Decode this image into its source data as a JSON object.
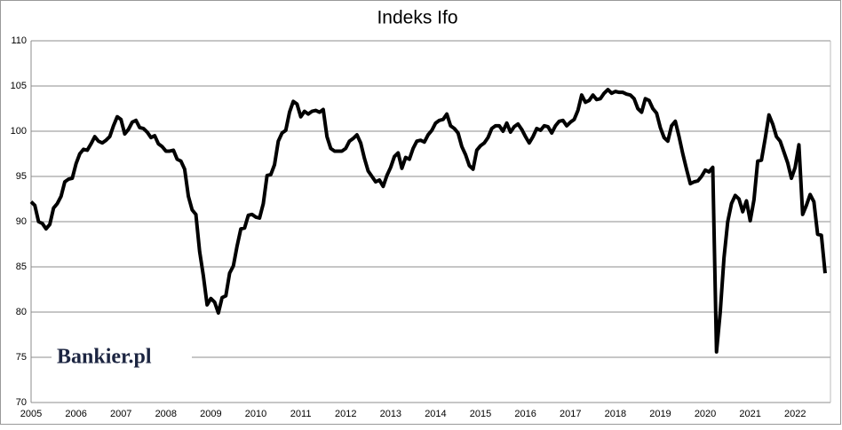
{
  "chart_data": {
    "type": "line",
    "title": "Indeks Ifo",
    "watermark": "Bankier.pl",
    "categories": [
      "2005",
      null,
      null,
      null,
      null,
      null,
      null,
      null,
      null,
      null,
      null,
      null,
      "2006",
      null,
      null,
      null,
      null,
      null,
      null,
      null,
      null,
      null,
      null,
      null,
      "2007",
      null,
      null,
      null,
      null,
      null,
      null,
      null,
      null,
      null,
      null,
      null,
      "2008",
      null,
      null,
      null,
      null,
      null,
      null,
      null,
      null,
      null,
      null,
      null,
      "2009",
      null,
      null,
      null,
      null,
      null,
      null,
      null,
      null,
      null,
      null,
      null,
      "2010",
      null,
      null,
      null,
      null,
      null,
      null,
      null,
      null,
      null,
      null,
      null,
      "2011",
      null,
      null,
      null,
      null,
      null,
      null,
      null,
      null,
      null,
      null,
      null,
      "2012",
      null,
      null,
      null,
      null,
      null,
      null,
      null,
      null,
      null,
      null,
      null,
      "2013",
      null,
      null,
      null,
      null,
      null,
      null,
      null,
      null,
      null,
      null,
      null,
      "2014",
      null,
      null,
      null,
      null,
      null,
      null,
      null,
      null,
      null,
      null,
      null,
      "2015",
      null,
      null,
      null,
      null,
      null,
      null,
      null,
      null,
      null,
      null,
      null,
      "2016",
      null,
      null,
      null,
      null,
      null,
      null,
      null,
      null,
      null,
      null,
      null,
      "2017",
      null,
      null,
      null,
      null,
      null,
      null,
      null,
      null,
      null,
      null,
      null,
      "2018",
      null,
      null,
      null,
      null,
      null,
      null,
      null,
      null,
      null,
      null,
      null,
      "2019",
      null,
      null,
      null,
      null,
      null,
      null,
      null,
      null,
      null,
      null,
      null,
      "2020",
      null,
      null,
      null,
      null,
      null,
      null,
      null,
      null,
      null,
      null,
      null,
      "2021",
      null,
      null,
      null,
      null,
      null,
      null,
      null,
      null,
      null,
      null,
      null,
      "2022",
      null,
      null,
      null,
      null,
      null,
      null,
      null,
      null
    ],
    "series": [
      {
        "name": "Indeks Ifo",
        "color": "#000000",
        "values": [
          92.2,
          91.8,
          90.0,
          89.8,
          89.2,
          89.7,
          91.5,
          92.0,
          92.8,
          94.4,
          94.7,
          94.8,
          96.4,
          97.5,
          98.0,
          97.9,
          98.6,
          99.4,
          98.9,
          98.7,
          99.0,
          99.4,
          100.6,
          101.6,
          101.3,
          99.7,
          100.2,
          101.0,
          101.2,
          100.4,
          100.3,
          99.9,
          99.3,
          99.5,
          98.6,
          98.3,
          97.8,
          97.8,
          97.9,
          96.9,
          96.7,
          95.8,
          92.8,
          91.3,
          90.8,
          86.7,
          84.0,
          80.8,
          81.5,
          81.1,
          79.9,
          81.6,
          81.8,
          84.3,
          85.1,
          87.3,
          89.2,
          89.3,
          90.7,
          90.8,
          90.5,
          90.4,
          92.0,
          95.1,
          95.2,
          96.3,
          98.9,
          99.8,
          100.1,
          102.1,
          103.3,
          103.0,
          101.6,
          102.2,
          101.9,
          102.2,
          102.3,
          102.1,
          102.4,
          99.4,
          98.1,
          97.8,
          97.8,
          97.8,
          98.1,
          98.9,
          99.2,
          99.6,
          98.7,
          97.0,
          95.6,
          95.0,
          94.4,
          94.6,
          93.9,
          95.1,
          96.0,
          97.2,
          97.6,
          95.9,
          97.1,
          96.9,
          98.1,
          98.9,
          99.0,
          98.8,
          99.6,
          100.1,
          100.9,
          101.2,
          101.3,
          101.9,
          100.6,
          100.3,
          99.8,
          98.3,
          97.4,
          96.2,
          95.8,
          97.9,
          98.4,
          98.7,
          99.3,
          100.3,
          100.6,
          100.6,
          100.0,
          100.9,
          99.9,
          100.5,
          100.8,
          100.2,
          99.4,
          98.7,
          99.4,
          100.3,
          100.1,
          100.6,
          100.5,
          99.8,
          100.6,
          101.1,
          101.2,
          100.6,
          101.0,
          101.3,
          102.3,
          104.0,
          103.2,
          103.4,
          104.0,
          103.5,
          103.6,
          104.2,
          104.6,
          104.2,
          104.4,
          104.3,
          104.3,
          104.1,
          104.0,
          103.6,
          102.5,
          102.1,
          103.6,
          103.4,
          102.5,
          102.0,
          100.4,
          99.3,
          98.9,
          100.6,
          101.1,
          99.4,
          97.5,
          95.8,
          94.2,
          94.4,
          94.5,
          95.0,
          95.7,
          95.5,
          96.0,
          75.6,
          80.0,
          86.0,
          90.0,
          92.0,
          92.9,
          92.5,
          91.1,
          92.3,
          90.1,
          92.4,
          96.7,
          96.8,
          99.2,
          101.8,
          100.8,
          99.4,
          98.9,
          97.7,
          96.5,
          94.8,
          96.0,
          98.5,
          90.8,
          91.8,
          93.0,
          92.2,
          88.6,
          88.5,
          84.3
        ]
      }
    ],
    "ylim": [
      70,
      110
    ],
    "yticks": [
      70,
      75,
      80,
      85,
      90,
      95,
      100,
      105,
      110
    ],
    "grid": true
  }
}
